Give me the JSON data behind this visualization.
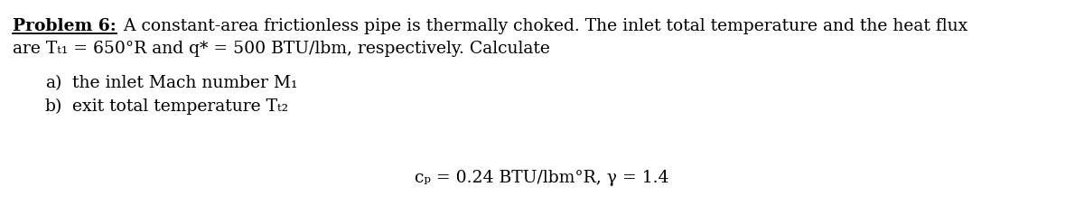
{
  "background_color": "#ffffff",
  "title_bold": "Problem 6:",
  "title_rest": " A constant-area frictionless pipe is thermally choked. The inlet total temperature and the heat flux",
  "line2": "are Tₜ₁ = 650°R and q* = 500 BTU/lbm, respectively. Calculate",
  "item_a_label": "a)",
  "item_a_text": "the inlet Mach number M₁",
  "item_b_label": "b)",
  "item_b_text": "exit total temperature Tₜ₂",
  "footer": "cₚ = 0.24 BTU/lbm°R, γ = 1.4",
  "font_size": 13.5,
  "font_family": "DejaVu Serif"
}
